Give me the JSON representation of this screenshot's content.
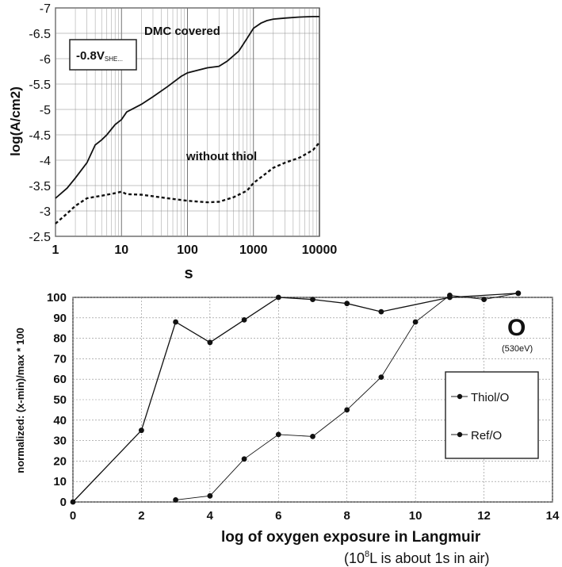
{
  "chart_data": [
    {
      "type": "line",
      "xscale": "log",
      "yaxis_reversed": true,
      "grid": true,
      "xlabel": "s",
      "ylabel": "log(A/cm2)",
      "xlim": [
        1,
        10000
      ],
      "ylim": [
        -2.5,
        -7
      ],
      "xticks": [
        "1",
        "10",
        "100",
        "1000",
        "10000"
      ],
      "yticks": [
        "-2.5",
        "-3",
        "-3.5",
        "-4",
        "-4.5",
        "-5",
        "-5.5",
        "-6",
        "-6.5",
        "-7"
      ],
      "box_label": {
        "main": "-0.8V",
        "sub": "SHE..."
      },
      "series": [
        {
          "name": "DMC covered",
          "style": "solid",
          "x": [
            1,
            1.5,
            2,
            3,
            4,
            5,
            6,
            8,
            10,
            12,
            20,
            30,
            50,
            80,
            100,
            150,
            200,
            300,
            400,
            600,
            800,
            1000,
            1300,
            1600,
            2000,
            3000,
            5000,
            8000,
            10000
          ],
          "y": [
            -3.25,
            -3.45,
            -3.65,
            -3.95,
            -4.3,
            -4.4,
            -4.5,
            -4.7,
            -4.8,
            -4.95,
            -5.1,
            -5.25,
            -5.45,
            -5.65,
            -5.72,
            -5.78,
            -5.82,
            -5.85,
            -5.95,
            -6.15,
            -6.4,
            -6.6,
            -6.7,
            -6.75,
            -6.78,
            -6.8,
            -6.82,
            -6.83,
            -6.83
          ]
        },
        {
          "name": "without thiol",
          "style": "dashed",
          "x": [
            1,
            1.5,
            2,
            3,
            5,
            8,
            10,
            12,
            20,
            50,
            100,
            200,
            300,
            500,
            800,
            1000,
            2000,
            3000,
            5000,
            8000,
            10000
          ],
          "y": [
            -2.75,
            -2.95,
            -3.1,
            -3.25,
            -3.3,
            -3.35,
            -3.38,
            -3.33,
            -3.32,
            -3.25,
            -3.2,
            -3.17,
            -3.18,
            -3.27,
            -3.4,
            -3.55,
            -3.85,
            -3.95,
            -4.05,
            -4.2,
            -4.35
          ]
        }
      ]
    },
    {
      "type": "line",
      "grid": true,
      "xlabel": "log of oxygen exposure in Langmuir",
      "xlabel_note": {
        "before": "(10",
        "sup": "8",
        "after": "L is about 1s in air)"
      },
      "ylabel": "normalized: (x-min)/max * 100",
      "xlim": [
        0,
        14
      ],
      "ylim": [
        0,
        100
      ],
      "xticks": [
        "0",
        "2",
        "4",
        "6",
        "8",
        "10",
        "12",
        "14"
      ],
      "yticks": [
        "0",
        "10",
        "20",
        "30",
        "40",
        "50",
        "60",
        "70",
        "80",
        "90",
        "100"
      ],
      "element_label": "O",
      "element_energy": "(530eV)",
      "series": [
        {
          "name": "Thiol/O",
          "x": [
            3,
            4,
            5,
            6,
            7,
            8,
            9,
            10,
            11,
            12,
            13
          ],
          "y": [
            1,
            3,
            21,
            33,
            32,
            45,
            61,
            88,
            101,
            99,
            102
          ]
        },
        {
          "name": "Ref/O",
          "x": [
            0,
            2,
            3,
            4,
            5,
            6,
            7,
            8,
            9,
            11,
            13
          ],
          "y": [
            0,
            35,
            88,
            78,
            89,
            100,
            99,
            97,
            93,
            100,
            102
          ]
        }
      ]
    }
  ]
}
